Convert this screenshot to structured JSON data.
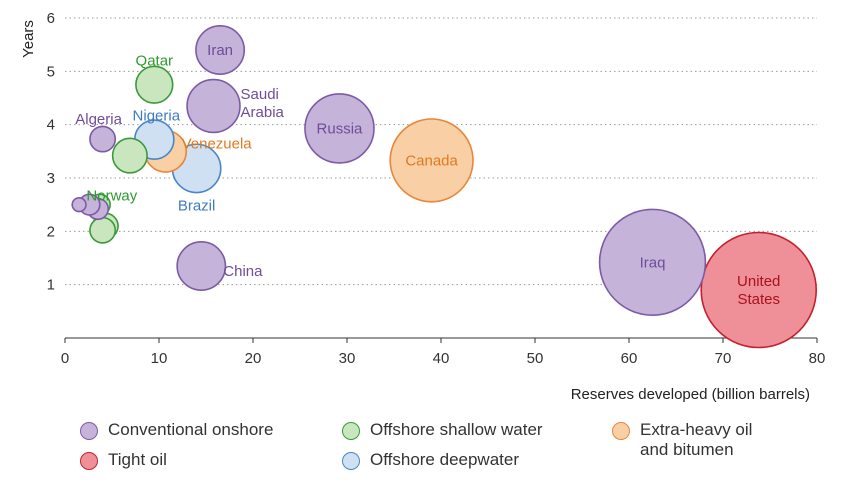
{
  "chart_data": {
    "type": "scatter",
    "variant": "bubble",
    "xlabel": "Reserves developed (billion barrels)",
    "ylabel": "Years",
    "xlim": [
      0,
      80
    ],
    "ylim": [
      0,
      6
    ],
    "x_ticks": [
      0,
      10,
      20,
      30,
      40,
      50,
      60,
      70,
      80
    ],
    "y_ticks": [
      1,
      2,
      3,
      4,
      5,
      6
    ],
    "grid": "horizontal-dotted",
    "legend_position": "bottom",
    "categories": [
      {
        "key": "onshore",
        "name": "Conventional onshore",
        "fill": "#c6b3d9",
        "stroke": "#7c5ba6",
        "text": "#6e4d99"
      },
      {
        "key": "shallow",
        "name": "Offshore shallow water",
        "fill": "#c9e6bf",
        "stroke": "#3a9a3a",
        "text": "#2f9a2f"
      },
      {
        "key": "heavy",
        "name": "Extra-heavy oil\nand bitumen",
        "fill": "#f9cfa6",
        "stroke": "#e8873a",
        "text": "#e07a1f"
      },
      {
        "key": "tight",
        "name": "Tight oil",
        "fill": "#ef8f98",
        "stroke": "#c4212f",
        "text": "#b0141f"
      },
      {
        "key": "deep",
        "name": "Offshore deepwater",
        "fill": "#cfe0f2",
        "stroke": "#4a86c4",
        "text": "#3f7bbf"
      }
    ],
    "points": [
      {
        "label": "Iran",
        "x": 16.5,
        "y": 5.4,
        "size": 2.1,
        "category": "onshore"
      },
      {
        "label": "Qatar",
        "x": 9.5,
        "y": 4.75,
        "size": 1.6,
        "category": "shallow"
      },
      {
        "label": "Saudi Arabia",
        "x": 15.8,
        "y": 4.35,
        "size": 2.3,
        "category": "onshore"
      },
      {
        "label": "Algeria",
        "x": 4.0,
        "y": 3.73,
        "size": 1.1,
        "category": "onshore"
      },
      {
        "label": "Nigeria",
        "x": 9.5,
        "y": 3.72,
        "size": 1.7,
        "category": "deep"
      },
      {
        "label": "Venezuela",
        "x": 10.7,
        "y": 3.5,
        "size": 1.8,
        "category": "heavy"
      },
      {
        "label": "Russia",
        "x": 29.2,
        "y": 3.93,
        "size": 3.0,
        "category": "onshore"
      },
      {
        "label": "Canada",
        "x": 39.0,
        "y": 3.33,
        "size": 3.6,
        "category": "heavy"
      },
      {
        "label": "Norway",
        "x": 6.9,
        "y": 3.42,
        "size": 1.5,
        "category": "shallow"
      },
      {
        "label": "Brazil",
        "x": 14.0,
        "y": 3.18,
        "size": 2.1,
        "category": "deep"
      },
      {
        "label": "",
        "x": 4.3,
        "y": 2.1,
        "size": 1.1,
        "category": "shallow"
      },
      {
        "label": "",
        "x": 4.0,
        "y": 2.02,
        "size": 1.1,
        "category": "shallow"
      },
      {
        "label": "",
        "x": 3.7,
        "y": 2.5,
        "size": 0.9,
        "category": "shallow"
      },
      {
        "label": "",
        "x": 1.5,
        "y": 2.5,
        "size": 0.6,
        "category": "onshore"
      },
      {
        "label": "",
        "x": 3.5,
        "y": 2.42,
        "size": 0.9,
        "category": "onshore"
      },
      {
        "label": "",
        "x": 2.6,
        "y": 2.5,
        "size": 0.9,
        "category": "onshore"
      },
      {
        "label": "China",
        "x": 14.5,
        "y": 1.35,
        "size": 2.1,
        "category": "onshore"
      },
      {
        "label": "Iraq",
        "x": 62.5,
        "y": 1.42,
        "size": 4.6,
        "category": "onshore"
      },
      {
        "label": "United States",
        "x": 73.8,
        "y": 0.9,
        "size": 5.0,
        "category": "tight"
      }
    ]
  }
}
